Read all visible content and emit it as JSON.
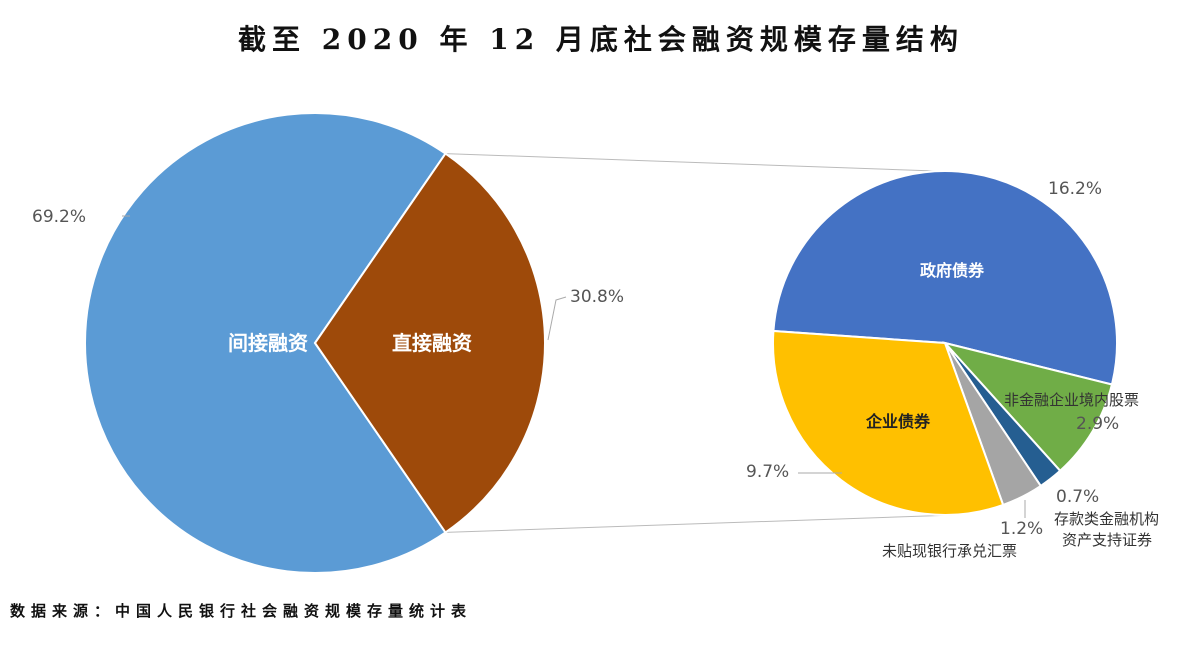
{
  "chart_data": {
    "type": "pie-of-pie",
    "title": "截至 2020 年 12 月底社会融资规模存量结构",
    "source": "数据来源：中国人民银行社会融资规模存量统计表",
    "main_pie": [
      {
        "label": "间接融资",
        "value": 69.2,
        "value_label": "69.2%",
        "color": "#5B9BD5"
      },
      {
        "label": "直接融资",
        "value": 30.8,
        "value_label": "30.8%",
        "color": "#9E4A0A"
      }
    ],
    "secondary_pie": [
      {
        "label": "政府债券",
        "value": 16.2,
        "value_label": "16.2%",
        "color": "#4472C4"
      },
      {
        "label": "非金融企业境内股票",
        "value": 2.9,
        "value_label": "2.9%",
        "color": "#70AD47"
      },
      {
        "label": "存款类金融机构资产支持证券",
        "label_lines": [
          "存款类金融机构",
          "资产支持证券"
        ],
        "value": 0.7,
        "value_label": "0.7%",
        "color": "#255E91"
      },
      {
        "label": "未贴现银行承兑汇票",
        "value": 1.2,
        "value_label": "1.2%",
        "color": "#A5A5A5"
      },
      {
        "label": "企业债券",
        "value": 9.7,
        "value_label": "9.7%",
        "color": "#FFC000"
      }
    ]
  }
}
